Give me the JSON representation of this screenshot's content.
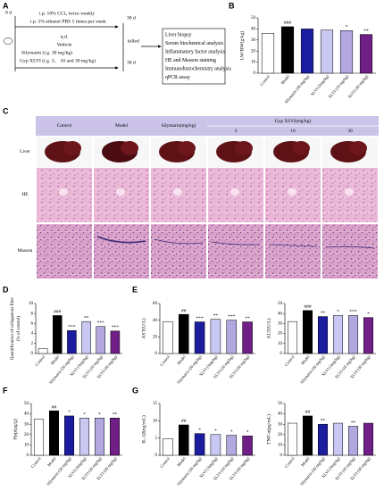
{
  "panel_letters": [
    "A",
    "B",
    "C",
    "D",
    "E",
    "F",
    "G"
  ],
  "panel_a": {
    "start": "0 d",
    "treatment_1": "i.p. 10% CCl₄ twice weekly",
    "treatment_2": "i.p. 5% ethanol PBS 5 times per week",
    "end_1": "30 d",
    "killed": "killed",
    "dosing": "q.d.",
    "groups": [
      "Vehicle",
      "Silymarin (i.g. 30 mg/kg)",
      "Gyp XLVI (i.g. 3、 10 and 30 mg/kg)"
    ],
    "end_2": "30 d",
    "analyses": [
      "Liver biopsy",
      "Serum biochemical analysis",
      "Inflammatory factor analysis",
      "HE and Masson staining",
      "Immunohistochemistry analysis",
      "qPCR assay"
    ]
  },
  "panel_c": {
    "columns": [
      "Control",
      "Model",
      "Silymarin(mg/kg)"
    ],
    "gyp_header": "Gyp XLVI(mg/kg)",
    "doses": [
      "3",
      "10",
      "30"
    ],
    "rows": [
      "Liver",
      "HE",
      "Masson"
    ]
  },
  "chart_data": [
    {
      "type": "bar",
      "ylabel": "LW/BW(g/kg)",
      "categories": [
        "Control",
        "Model",
        "Silymarin (30 mg/kg)",
        "XLVI (3mg/kg)",
        "XLVI (10 mg/kg)",
        "XLVI (30 mg/kg)"
      ],
      "values": [
        36,
        42,
        40,
        39,
        38.5,
        35
      ],
      "annotations": [
        "",
        "###",
        null,
        null,
        "*",
        "**"
      ],
      "colors": [
        "#ffffff",
        "#000000",
        "#1c1c9e",
        "#c9c8f2",
        "#b3a7e0",
        "#6f1f86"
      ],
      "ylim": [
        0,
        50
      ],
      "yticks": [
        0,
        10,
        20,
        30,
        40,
        50
      ]
    },
    {
      "type": "bar",
      "ylabel": [
        "Quantification of collagenous fiber",
        "(% of control)"
      ],
      "categories": [
        "Control",
        "Model",
        "Silymarin (30 mg/kg)",
        "XLVI (3mg/kg)",
        "XLVI (10 mg/kg)",
        "XLVI (30 mg/kg)"
      ],
      "values": [
        1,
        7.6,
        4.6,
        6.4,
        5.4,
        4.5
      ],
      "annotations": [
        null,
        "###",
        "***",
        "**",
        "***",
        "***"
      ],
      "colors": [
        "#ffffff",
        "#000000",
        "#1c1c9e",
        "#c9c8f2",
        "#b3a7e0",
        "#6f1f86"
      ],
      "ylim": [
        0,
        10
      ],
      "yticks": [
        0,
        2,
        4,
        6,
        8,
        10
      ]
    },
    {
      "type": "bar",
      "ylabel": "AST(U/L)",
      "categories": [
        "Control",
        "Model",
        "Silymarin (30 mg/kg)",
        "XLVI (3mg/kg)",
        "XLVI (10 mg/kg)",
        "XLVI (30 mg/kg)"
      ],
      "values": [
        38,
        47,
        38,
        41,
        40,
        38
      ],
      "annotations": [
        null,
        "##",
        "***",
        "**",
        "***",
        "**"
      ],
      "colors": [
        "#ffffff",
        "#000000",
        "#1c1c9e",
        "#c9c8f2",
        "#b3a7e0",
        "#6f1f86"
      ],
      "ylim": [
        0,
        60
      ],
      "yticks": [
        0,
        20,
        40,
        60
      ]
    },
    {
      "type": "bar",
      "ylabel": "ALT(U/L)",
      "categories": [
        "Control",
        "Model",
        "Silymarin (30 mg/kg)",
        "XLVI (3mg/kg)",
        "XLVI (10 mg/kg)",
        "XLVI (30 mg/kg)"
      ],
      "values": [
        32,
        43,
        37,
        38,
        38,
        36
      ],
      "annotations": [
        null,
        "###",
        "**",
        "*",
        "***",
        "*"
      ],
      "colors": [
        "#ffffff",
        "#000000",
        "#1c1c9e",
        "#c9c8f2",
        "#b3a7e0",
        "#6f1f86"
      ],
      "ylim": [
        0,
        50
      ],
      "yticks": [
        0,
        10,
        20,
        30,
        40,
        50
      ]
    },
    {
      "type": "bar",
      "ylabel": "Hyp(μg/g)",
      "categories": [
        "Control",
        "Model",
        "Silymarin (30 mg/kg)",
        "XLVI (3mg/kg)",
        "XLVI (10 mg/kg)",
        "XLVI (30 mg/kg)"
      ],
      "values": [
        35,
        43,
        38,
        36,
        36,
        36
      ],
      "annotations": [
        null,
        "##",
        "*",
        "*",
        "*",
        "**"
      ],
      "colors": [
        "#ffffff",
        "#000000",
        "#1c1c9e",
        "#c9c8f2",
        "#b3a7e0",
        "#6f1f86"
      ],
      "ylim": [
        0,
        50
      ],
      "yticks": [
        0,
        10,
        20,
        30,
        40,
        50
      ]
    },
    {
      "type": "bar",
      "ylabel": "IL-1β(ng/mL)",
      "categories": [
        "Control",
        "Model",
        "Silymarin (30 mg/kg)",
        "XLVI (3mg/kg)",
        "XLVI (10 mg/kg)",
        "XLVI (30 mg/kg)"
      ],
      "values": [
        4.8,
        8.8,
        6.3,
        6,
        5.8,
        5.6
      ],
      "annotations": [
        null,
        "##",
        "*",
        "*",
        "*",
        "*"
      ],
      "colors": [
        "#ffffff",
        "#000000",
        "#1c1c9e",
        "#c9c8f2",
        "#b3a7e0",
        "#6f1f86"
      ],
      "ylim": [
        0,
        15
      ],
      "yticks": [
        0,
        5,
        10,
        15
      ]
    },
    {
      "type": "bar",
      "ylabel": "TNF-α(pg/mL)",
      "categories": [
        "Control",
        "Model",
        "Silymarin (30 mg/kg)",
        "XLVI (3mg/kg)",
        "XLVI (10 mg/kg)",
        "XLVI (30 mg/kg)"
      ],
      "values": [
        31,
        38,
        30,
        31,
        28,
        31
      ],
      "annotations": [
        null,
        "##",
        "**",
        null,
        "**",
        null
      ],
      "colors": [
        "#ffffff",
        "#000000",
        "#1c1c9e",
        "#c9c8f2",
        "#b3a7e0",
        "#6f1f86"
      ],
      "ylim": [
        0,
        50
      ],
      "yticks": [
        0,
        10,
        20,
        30,
        40,
        50
      ]
    }
  ]
}
